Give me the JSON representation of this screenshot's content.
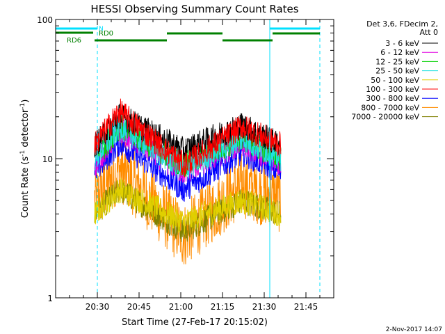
{
  "chart_data": {
    "type": "line",
    "title": "HESSI Observing Summary Count Rates",
    "xlabel": "Start Time (27-Feb-17 20:15:02)",
    "ylabel_main": "Count Rate (s",
    "ylabel_sup": "-1",
    "ylabel_tail": " detector",
    "ylabel_sup2": "-1",
    "ylabel_close": ")",
    "x_start_minutes": 0,
    "xlim_minutes": [
      0,
      100
    ],
    "yscale": "log",
    "ylim": [
      1,
      100
    ],
    "y_tick_labels": [
      "1",
      "10",
      "100"
    ],
    "x_ticks": [
      {
        "label": "20:30",
        "minute": 15
      },
      {
        "label": "20:45",
        "minute": 30
      },
      {
        "label": "21:00",
        "minute": 45
      },
      {
        "label": "21:15",
        "minute": 60
      },
      {
        "label": "21:30",
        "minute": 75
      },
      {
        "label": "21:45",
        "minute": 90
      }
    ],
    "legend_header": [
      "Det 3,6, FDecim 2,",
      "Att 0"
    ],
    "series": [
      {
        "name": "3 - 6 keV",
        "color": "#000000",
        "peaks": [
          20.5,
          17.5
        ],
        "dip": 11.5,
        "valley_start": 12.5
      },
      {
        "name": "6 - 12 keV",
        "color": "#e000e0",
        "peaks": [
          16,
          13
        ],
        "dip": 8,
        "valley_start": 9
      },
      {
        "name": "12 - 25 keV",
        "color": "#00d000",
        "peaks": [
          17,
          14
        ],
        "dip": 9,
        "valley_start": 10
      },
      {
        "name": "25 - 50 keV",
        "color": "#20e0e0",
        "peaks": [
          17,
          14
        ],
        "dip": 8.5,
        "valley_start": 10
      },
      {
        "name": "50 - 100 keV",
        "color": "#e0d000",
        "peaks": [
          6,
          5
        ],
        "dip": 3.5,
        "valley_start": 4
      },
      {
        "name": "100 - 300 keV",
        "color": "#ff0000",
        "peaks": [
          22,
          17
        ],
        "dip": 9,
        "valley_start": 12.5
      },
      {
        "name": "300 - 800 keV",
        "color": "#0000ff",
        "peaks": [
          13,
          11
        ],
        "dip": 6,
        "valley_start": 8
      },
      {
        "name": "800 - 7000 keV",
        "color": "#ff8c00",
        "peaks": [
          8.5,
          6.5
        ],
        "dip": 2.8,
        "valley_start": 5
      },
      {
        "name": "7000 - 20000 keV",
        "color": "#808000",
        "peaks": [
          6,
          5
        ],
        "dip": 3,
        "valley_start": 4
      }
    ],
    "data_window_minutes": [
      14,
      81
    ],
    "peak_times_minutes": [
      23,
      67
    ],
    "dip_time_minutes": 46,
    "night_markers": [
      {
        "start": 0,
        "end": 15,
        "label": "N"
      },
      {
        "start": 77,
        "end": 95,
        "label": ""
      }
    ],
    "orbit_marker_lines": [
      0,
      15,
      77,
      95
    ],
    "rd0_label": "RD0",
    "rd6_label": "RD6",
    "rd0_segment": {
      "start": 0,
      "end": 13.5
    },
    "rd6_segments": [
      {
        "start": 14,
        "end": 40
      },
      {
        "start": 40,
        "end": 60
      },
      {
        "start": 60,
        "end": 78
      },
      {
        "start": 78,
        "end": 95
      }
    ],
    "grid": false
  },
  "footer_date": "2-Nov-2017 14:07",
  "colors": {
    "axis": "#000000",
    "night": "#00e0ff",
    "rd": "#008000",
    "background": "#ffffff"
  }
}
